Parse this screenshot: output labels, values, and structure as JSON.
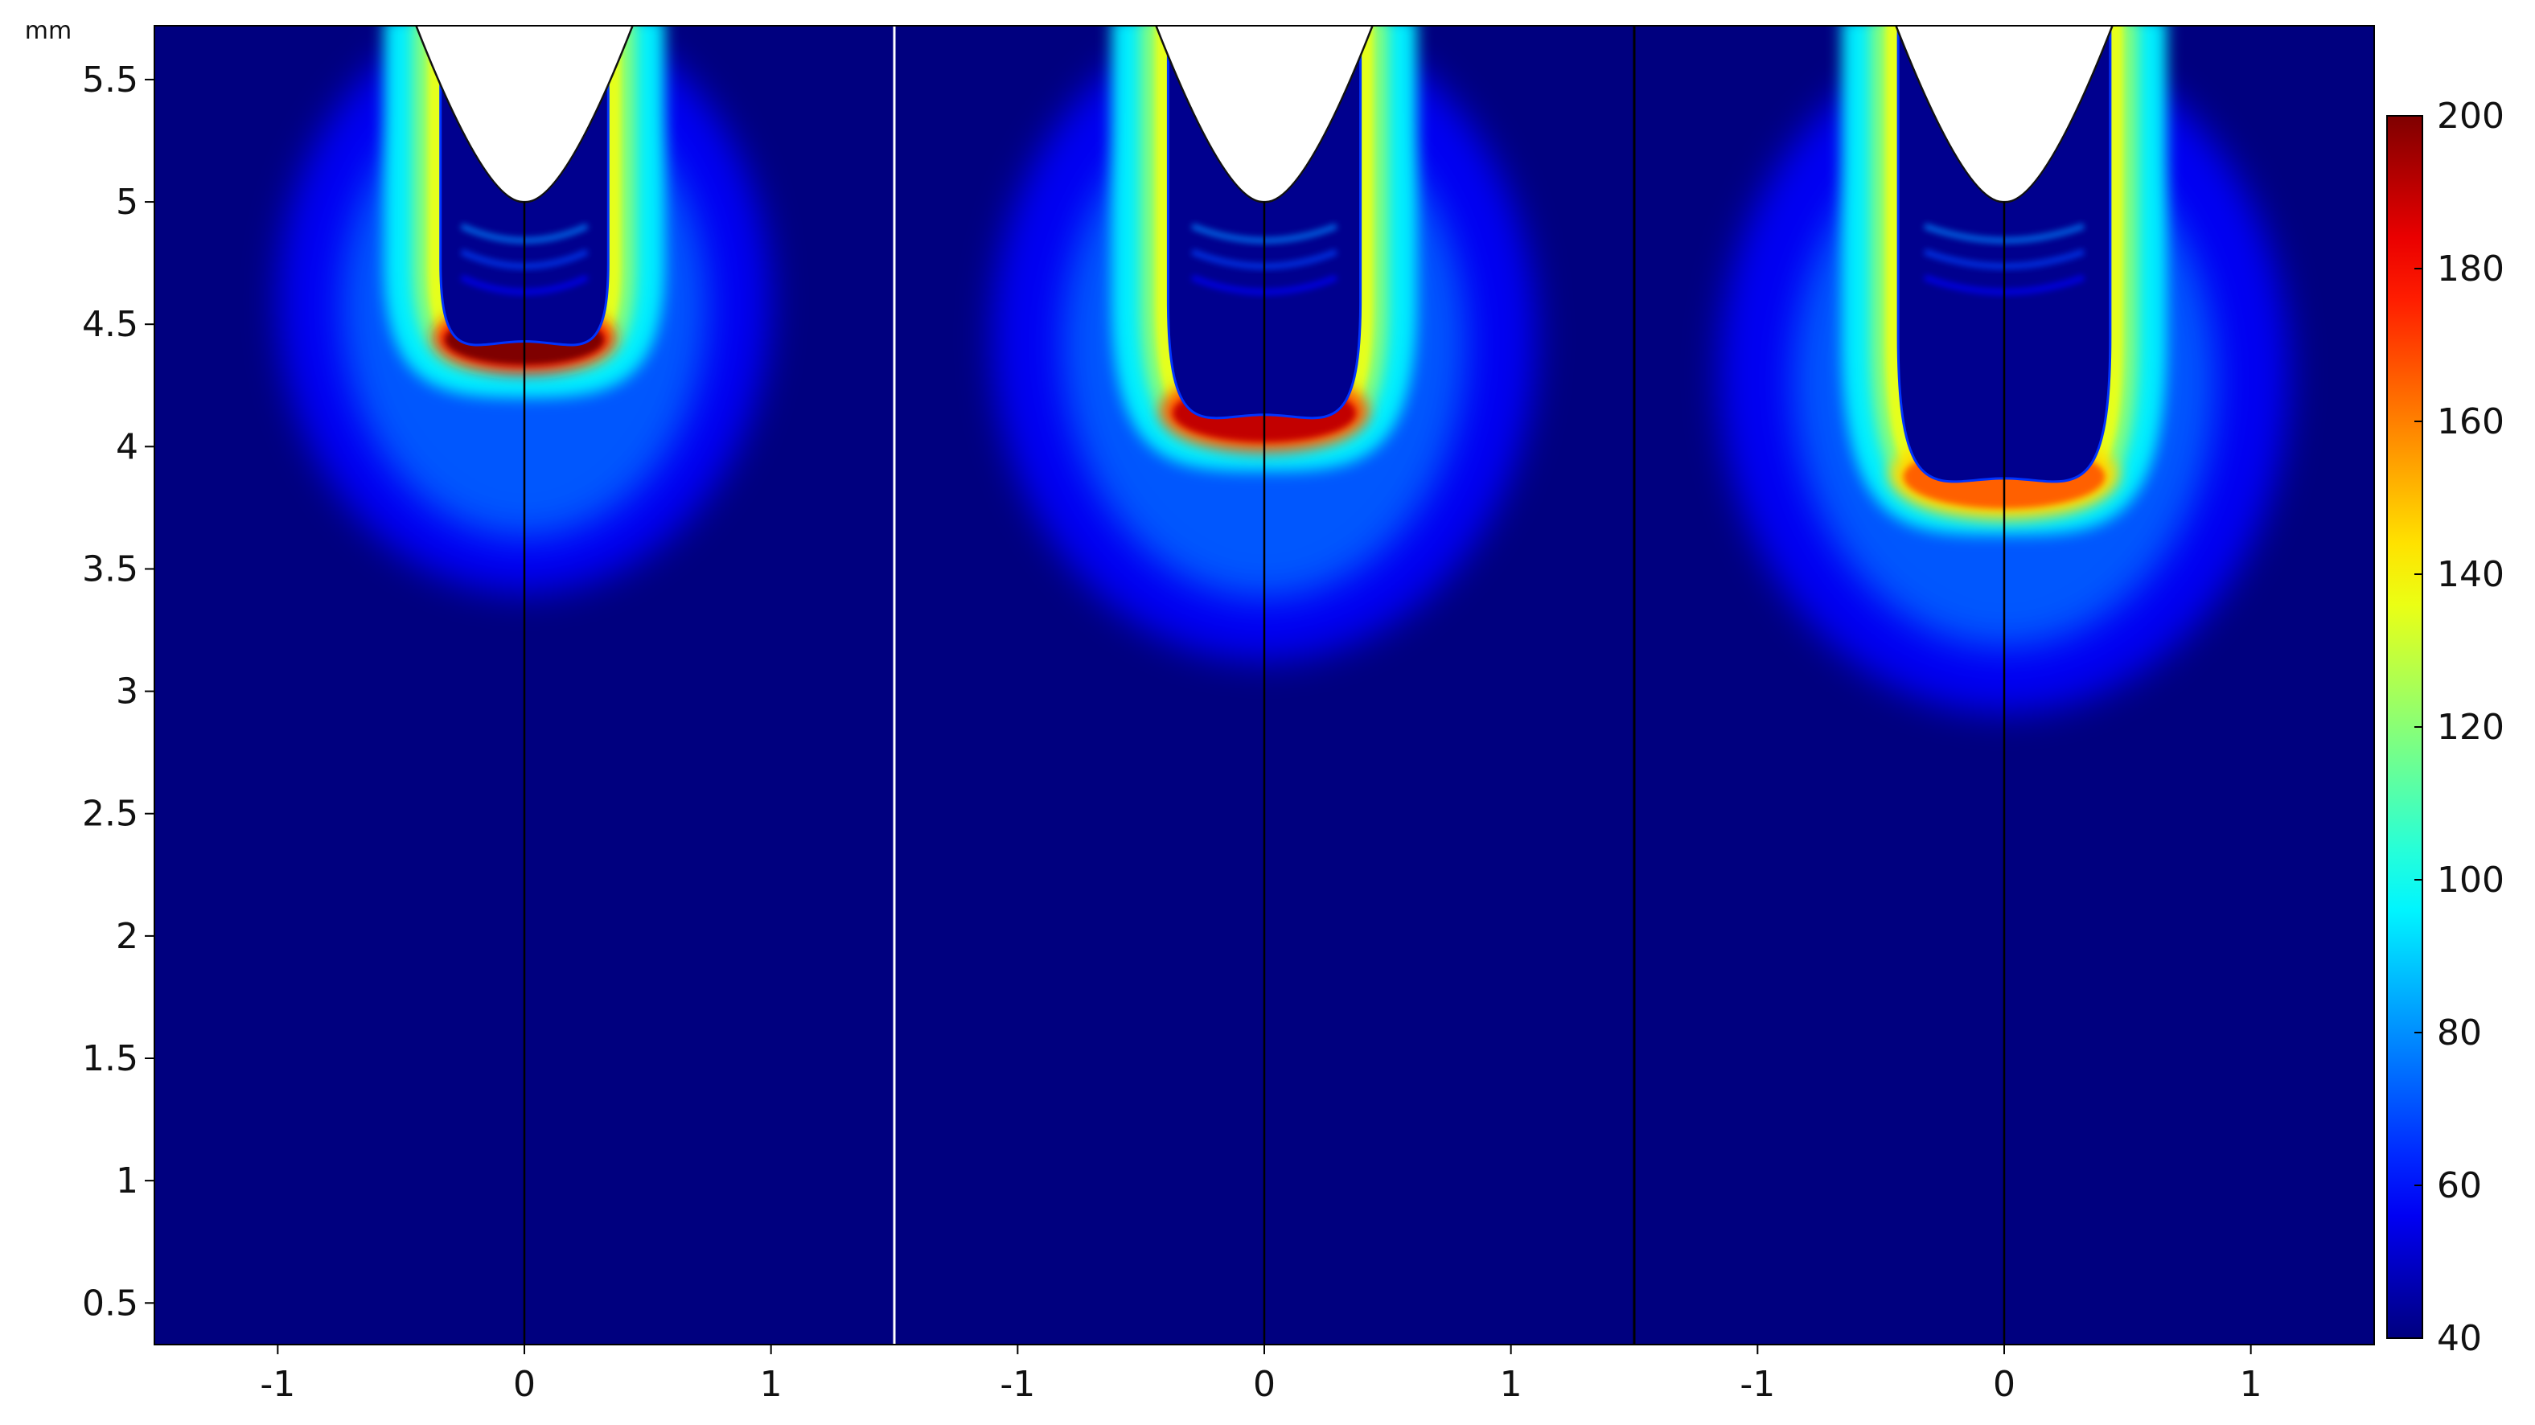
{
  "chart_data": {
    "type": "heatmap",
    "title": "",
    "xlabel": "",
    "ylabel": "",
    "y_unit": "mm",
    "xlim": [
      -1.5,
      1.5
    ],
    "ylim": [
      0.33,
      5.72
    ],
    "x_ticks": [
      -1,
      0,
      1
    ],
    "y_ticks": [
      0.5,
      1,
      1.5,
      2,
      2.5,
      3,
      3.5,
      4,
      4.5,
      5,
      5.5
    ],
    "grid": false,
    "colorbar": {
      "min": 40,
      "max": 200,
      "ticks": [
        40,
        60,
        80,
        100,
        120,
        140,
        160,
        180,
        200
      ],
      "colormap": "jet",
      "colors": [
        "#00007f",
        "#0000ff",
        "#00ffff",
        "#ffff00",
        "#ff0000",
        "#7f0000"
      ]
    },
    "background_value": 40,
    "panels": [
      {
        "tip_y": 5.0,
        "tip_halfwidth_top": 0.43,
        "front_y": 4.43,
        "front_halfwidth": 0.34,
        "neck_y": 4.75,
        "peak_value": 200,
        "halo_radius": 0.95,
        "halo_center_y": 4.6
      },
      {
        "tip_y": 5.0,
        "tip_halfwidth_top": 0.43,
        "front_y": 4.13,
        "front_halfwidth": 0.39,
        "neck_y": 4.6,
        "peak_value": 190,
        "halo_radius": 1.05,
        "halo_center_y": 4.45
      },
      {
        "tip_y": 5.0,
        "tip_halfwidth_top": 0.43,
        "front_y": 3.87,
        "front_halfwidth": 0.43,
        "neck_y": 4.45,
        "peak_value": 165,
        "halo_radius": 1.1,
        "halo_center_y": 4.3
      }
    ]
  }
}
